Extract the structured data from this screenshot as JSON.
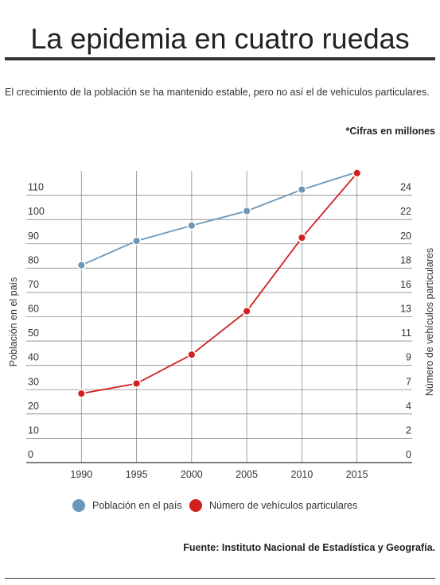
{
  "title": "La epidemia en cuatro ruedas",
  "subtitle": "El crecimiento de la población se ha mantenido estable, pero no así el de vehículos particulares.",
  "note": "*Cifras en millones",
  "source": "Fuente: Instituto Nacional de Estadística y Geografía.",
  "colors": {
    "population": "#6b97b8",
    "vehicles": "#d21f1f",
    "grid": "#888888",
    "axis": "#333333"
  },
  "chart_data": {
    "type": "line",
    "x": [
      "1990",
      "1995",
      "2000",
      "2005",
      "2010",
      "2015"
    ],
    "xlim": [
      1985,
      2020
    ],
    "ylabel_left": "Población en el país",
    "ylabel_right": "Número de vehículos particulares",
    "yticks_left": [
      "0",
      "10",
      "20",
      "30",
      "40",
      "50",
      "60",
      "70",
      "80",
      "90",
      "100",
      "110"
    ],
    "yticks_right": [
      "0",
      "2",
      "4",
      "7",
      "9",
      "11",
      "13",
      "16",
      "18",
      "20",
      "22",
      "24"
    ],
    "ylim_left": [
      0,
      120
    ],
    "ylim_right": [
      0,
      26.2
    ],
    "series": [
      {
        "name": "Población en el país",
        "axis": "left",
        "values": [
          81.2,
          91.2,
          97.5,
          103.5,
          112.3,
          119.5
        ]
      },
      {
        "name": "Número de vehículos particulares",
        "axis": "right",
        "values": [
          6.2,
          7.1,
          9.7,
          13.6,
          20.2,
          26.0
        ]
      }
    ],
    "grid": true,
    "legend_position": "bottom"
  }
}
